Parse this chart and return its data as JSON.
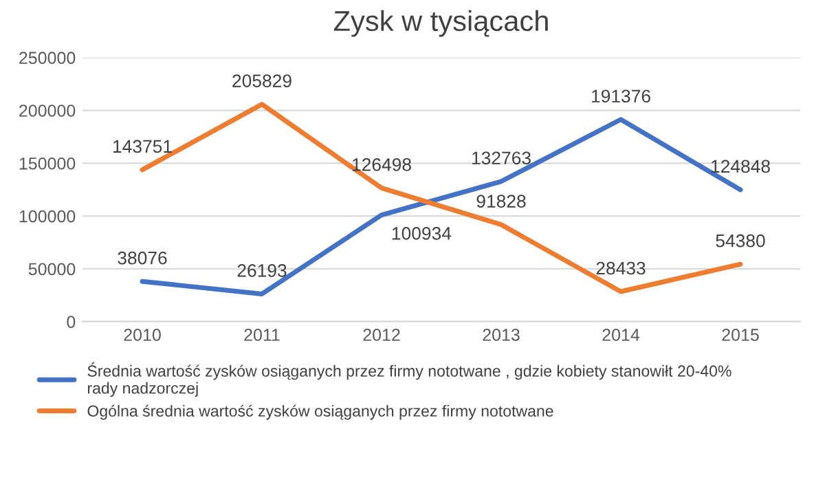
{
  "chart_data": {
    "type": "line",
    "title": "Zysk w tysiącach",
    "categories": [
      "2010",
      "2011",
      "2012",
      "2013",
      "2014",
      "2015"
    ],
    "series": [
      {
        "name": "Średnia wartość zysków osiąganych przez firmy nototwane , gdzie kobiety stanowiłt 20-40% rady nadzorczej",
        "color": "#4472c4",
        "values": [
          38076,
          26193,
          100934,
          132763,
          191376,
          124848
        ]
      },
      {
        "name": "Ogólna średnia wartość zysków osiąganych przez firmy nototwane",
        "color": "#ed7d31",
        "values": [
          143751,
          205829,
          126498,
          91828,
          28433,
          54380
        ]
      }
    ],
    "ylim": [
      0,
      250000
    ],
    "yticks": [
      0,
      50000,
      100000,
      150000,
      200000,
      250000
    ],
    "grid": "y",
    "legend": "bottom",
    "data_labels": true,
    "marker": "none",
    "line_style": "solid"
  }
}
